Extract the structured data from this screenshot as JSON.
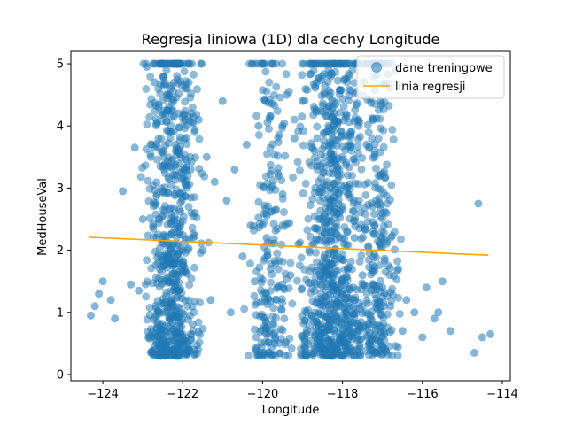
{
  "chart_data": {
    "type": "scatter",
    "title": "Regresja liniowa (1D) dla cechy Longitude",
    "xlabel": "Longitude",
    "ylabel": "MedHouseVal",
    "xlim": [
      -124.8,
      -113.8
    ],
    "ylim": [
      -0.1,
      5.2
    ],
    "xticks": [
      -124,
      -122,
      -120,
      -118,
      -116,
      -114
    ],
    "yticks": [
      0,
      1,
      2,
      3,
      4,
      5
    ],
    "xtick_labels": [
      "−124",
      "−122",
      "−120",
      "−118",
      "−116",
      "−114"
    ],
    "ytick_labels": [
      "0",
      "1",
      "2",
      "3",
      "4",
      "5"
    ],
    "grid": false,
    "legend_position": "top-right",
    "series": [
      {
        "name": "dane treningowe",
        "kind": "scatter",
        "color": "#1f77b4",
        "point_count_note": "dense cloud concentrated near -122.3 and -118.2; sample of visible points below",
        "x": [
          -124.3,
          -124.2,
          -124.1,
          -124.0,
          -123.8,
          -123.7,
          -123.5,
          -123.3,
          -123.2,
          -123.1,
          -123.0,
          -122.9,
          -122.8,
          -122.7,
          -122.6,
          -122.5,
          -122.4,
          -122.3,
          -122.2,
          -122.1,
          -122.0,
          -121.9,
          -121.8,
          -121.7,
          -121.6,
          -121.5,
          -121.4,
          -121.3,
          -121.2,
          -121.0,
          -120.9,
          -120.8,
          -120.7,
          -120.5,
          -120.4,
          -120.3,
          -120.2,
          -120.1,
          -120.0,
          -119.9,
          -119.8,
          -119.7,
          -119.6,
          -119.5,
          -119.4,
          -119.3,
          -119.2,
          -119.1,
          -119.0,
          -118.9,
          -118.8,
          -118.7,
          -118.6,
          -118.5,
          -118.4,
          -118.3,
          -118.2,
          -118.1,
          -118.0,
          -117.9,
          -117.8,
          -117.7,
          -117.6,
          -117.5,
          -117.4,
          -117.3,
          -117.2,
          -117.1,
          -117.0,
          -116.9,
          -116.8,
          -116.6,
          -116.5,
          -116.4,
          -116.2,
          -116.0,
          -115.9,
          -115.7,
          -115.6,
          -115.5,
          -115.3,
          -114.7,
          -114.6,
          -114.5,
          -114.3
        ],
        "y": [
          0.95,
          1.1,
          1.3,
          1.5,
          1.2,
          0.9,
          2.95,
          1.45,
          3.65,
          1.35,
          2.5,
          4.95,
          3.5,
          4.7,
          4.3,
          5.0,
          4.5,
          3.9,
          2.9,
          4.2,
          1.8,
          4.6,
          3.3,
          2.6,
          4.1,
          2.0,
          3.5,
          1.2,
          3.1,
          4.4,
          2.8,
          1.0,
          3.3,
          1.9,
          3.7,
          2.4,
          1.5,
          4.0,
          0.35,
          2.2,
          1.7,
          0.5,
          3.2,
          2.9,
          4.5,
          1.6,
          3.8,
          2.1,
          4.4,
          1.0,
          5.0,
          3.6,
          2.5,
          4.8,
          1.8,
          3.0,
          4.2,
          5.0,
          2.7,
          1.3,
          3.9,
          2.2,
          4.0,
          1.6,
          3.7,
          0.9,
          2.4,
          3.2,
          1.4,
          2.6,
          1.1,
          1.7,
          0.7,
          1.2,
          1.0,
          0.6,
          1.4,
          0.9,
          1.0,
          1.5,
          0.7,
          0.35,
          2.75,
          0.6,
          0.65
        ]
      },
      {
        "name": "linia regresji",
        "kind": "line",
        "color": "#ffa500",
        "x": [
          -124.35,
          -114.35
        ],
        "y": [
          2.21,
          1.92
        ]
      }
    ]
  }
}
